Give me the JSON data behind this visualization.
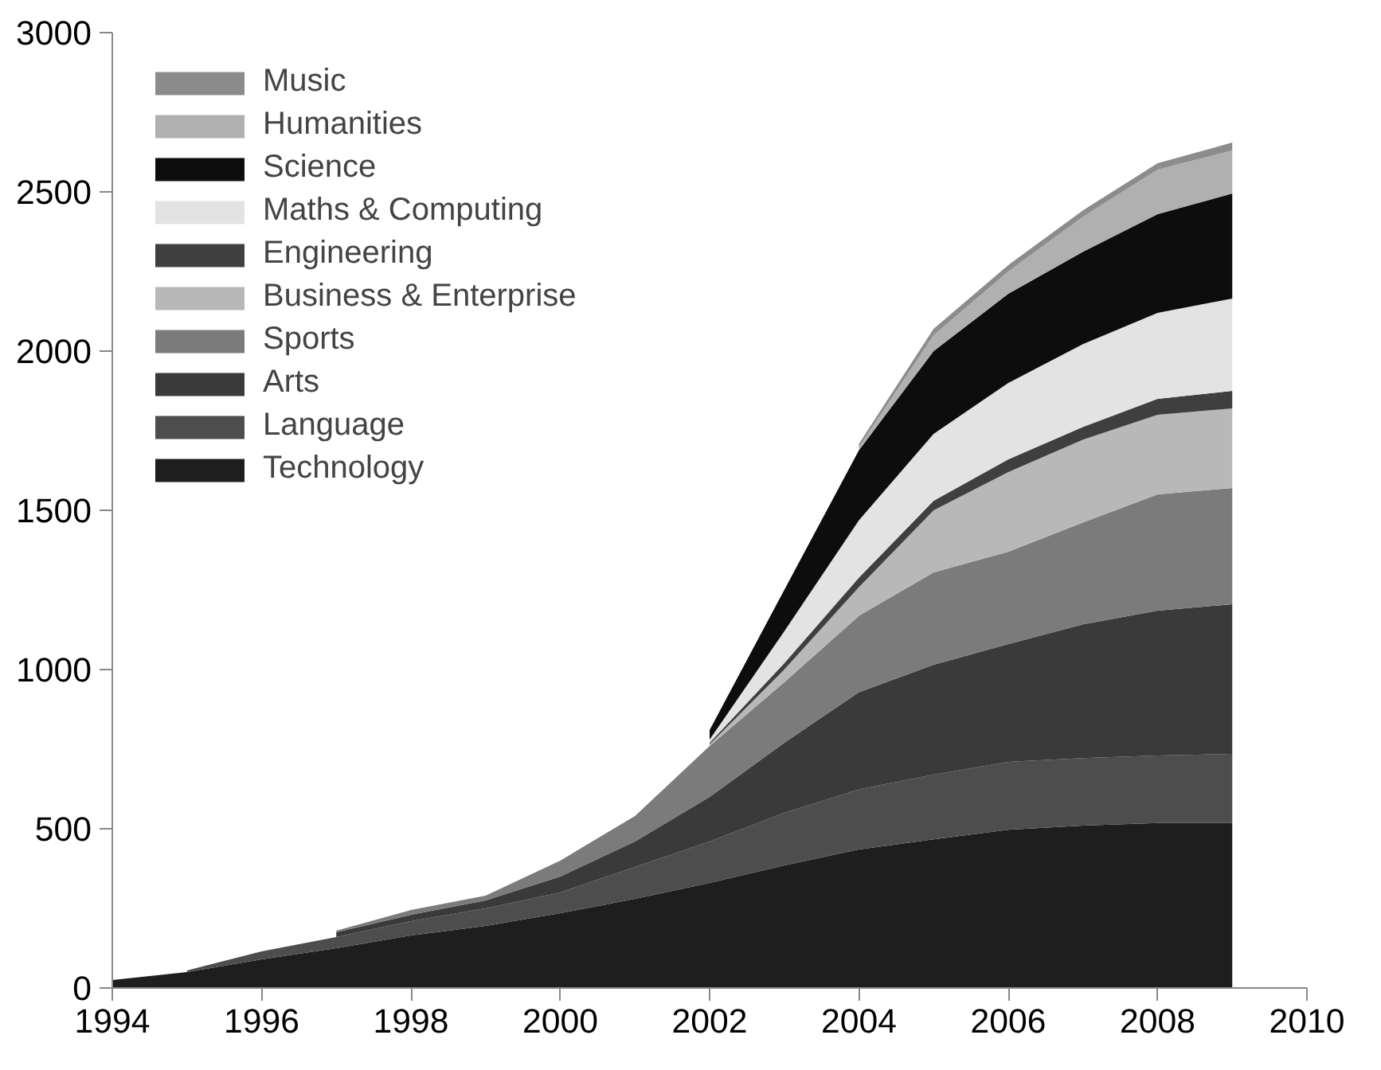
{
  "chart_data": {
    "type": "area",
    "stacked": true,
    "x": [
      1994,
      1995,
      1996,
      1997,
      1998,
      1999,
      2000,
      2001,
      2002,
      2003,
      2004,
      2005,
      2006,
      2007,
      2008,
      2009
    ],
    "series": [
      {
        "name": "Technology",
        "color": "#1e1e1e",
        "values": [
          25,
          50,
          90,
          125,
          165,
          195,
          235,
          280,
          330,
          385,
          435,
          467,
          497,
          510,
          518,
          518
        ]
      },
      {
        "name": "Language",
        "color": "#4d4d4d",
        "values": [
          null,
          5,
          25,
          35,
          45,
          55,
          65,
          100,
          130,
          165,
          189,
          203,
          213,
          212,
          212,
          217
        ]
      },
      {
        "name": "Arts",
        "color": "#3a3a3a",
        "values": [
          null,
          null,
          null,
          15,
          20,
          25,
          50,
          80,
          140,
          220,
          305,
          345,
          370,
          420,
          455,
          470
        ]
      },
      {
        "name": "Sports",
        "color": "#7b7b7b",
        "values": [
          null,
          null,
          null,
          5,
          15,
          15,
          50,
          80,
          160,
          190,
          240,
          290,
          290,
          320,
          365,
          365
        ]
      },
      {
        "name": "Business & Enterprise",
        "color": "#b8b8b8",
        "values": [
          null,
          null,
          null,
          null,
          null,
          null,
          null,
          null,
          5,
          40,
          90,
          195,
          250,
          260,
          250,
          250
        ]
      },
      {
        "name": "Engineering",
        "color": "#3f3f3f",
        "values": [
          null,
          null,
          null,
          null,
          null,
          null,
          null,
          null,
          5,
          20,
          30,
          30,
          40,
          40,
          50,
          55
        ]
      },
      {
        "name": "Maths & Computing",
        "color": "#e3e3e3",
        "values": [
          null,
          null,
          null,
          null,
          null,
          null,
          null,
          null,
          10,
          100,
          180,
          210,
          240,
          260,
          270,
          290
        ]
      },
      {
        "name": "Science",
        "color": "#0d0d0d",
        "values": [
          null,
          null,
          null,
          null,
          null,
          null,
          null,
          null,
          30,
          130,
          220,
          260,
          280,
          290,
          310,
          330
        ]
      },
      {
        "name": "Humanities",
        "color": "#b0b0b0",
        "values": [
          null,
          null,
          null,
          null,
          null,
          null,
          null,
          null,
          null,
          null,
          10,
          50,
          70,
          110,
          140,
          135
        ]
      },
      {
        "name": "Music",
        "color": "#8c8c8c",
        "values": [
          null,
          null,
          null,
          null,
          null,
          null,
          null,
          null,
          null,
          null,
          10,
          20,
          20,
          20,
          20,
          25
        ]
      }
    ],
    "xlim": [
      1994,
      2010
    ],
    "xticks": [
      1994,
      1996,
      1998,
      2000,
      2002,
      2004,
      2006,
      2008,
      2010
    ],
    "ylim": [
      0,
      3000
    ],
    "yticks": [
      0,
      500,
      1000,
      1500,
      2000,
      2500,
      3000
    ],
    "legend": "top left"
  }
}
